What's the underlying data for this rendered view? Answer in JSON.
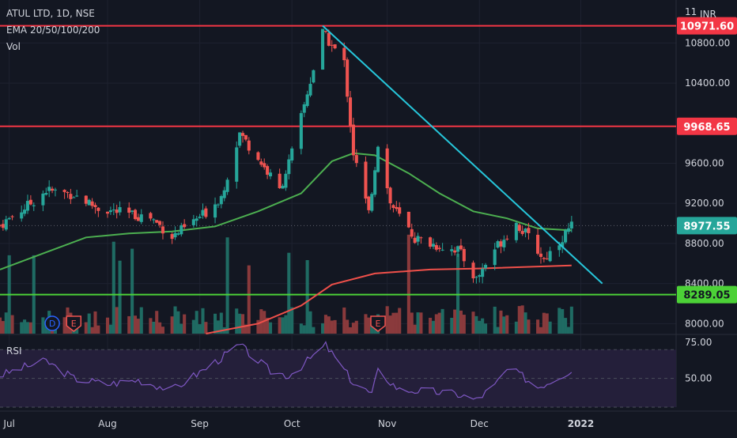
{
  "header": {
    "symbol_line": "ATUL LTD, 1D, NSE",
    "ema_line": "EMA 20/50/100/200",
    "vol_line": "Vol",
    "currency": "INR",
    "top_tick_partial": "11",
    "rsi_label": "RSI"
  },
  "colors": {
    "background": "#131722",
    "up": "#26a69a",
    "down": "#ef5350",
    "up_volume": "#1f6b63",
    "down_volume": "#8a3a3c",
    "ema_green": "#4caf50",
    "ema_red": "#f0504a",
    "trendline": "#26c6da",
    "resistance_line": "#f23645",
    "support_line": "#4cd137",
    "rsi_line": "#7e57c2",
    "rsi_band": "#241f3a"
  },
  "chart_data": [
    {
      "type": "candlestick",
      "title": "ATUL LTD, 1D, NSE",
      "ylim": [
        7900,
        11150
      ],
      "y_ticks": [
        "10800.00",
        "10400.00",
        "9600.00",
        "9200.00",
        "8800.00",
        "8400.00",
        "8000.00"
      ],
      "x_ticks": [
        "Jul",
        "Aug",
        "Sep",
        "Oct",
        "Nov",
        "Dec",
        "2022"
      ],
      "x_tick_dates": [
        "2021-07-01",
        "2021-08-02",
        "2021-09-01",
        "2021-10-01",
        "2021-11-01",
        "2021-12-01",
        "2022-01-03"
      ],
      "x_range": [
        "2021-06-28",
        "2022-01-25"
      ],
      "price_labels": [
        {
          "label": "10971.60",
          "value": 10971.6,
          "kind": "resistance"
        },
        {
          "label": "9968.65",
          "value": 9968.65,
          "kind": "resistance"
        },
        {
          "label": "8977.55",
          "value": 8977.55,
          "kind": "last_price"
        },
        {
          "label": "8289.05",
          "value": 8289.05,
          "kind": "support"
        }
      ],
      "horizontal_levels": [
        10971.6,
        9968.65,
        8289.05
      ],
      "trendline": {
        "from": {
          "date": "2021-10-11",
          "value": 10971.6
        },
        "to": {
          "date": "2022-01-10",
          "value": 8400
        }
      },
      "price_series": [
        {
          "date": "2021-06-28",
          "value": 8980
        },
        {
          "date": "2021-07-08",
          "value": 9200
        },
        {
          "date": "2021-07-13",
          "value": 9330
        },
        {
          "date": "2021-07-22",
          "value": 9290
        },
        {
          "date": "2021-07-30",
          "value": 9150
        },
        {
          "date": "2021-08-09",
          "value": 9090
        },
        {
          "date": "2021-08-16",
          "value": 9060
        },
        {
          "date": "2021-08-23",
          "value": 8870
        },
        {
          "date": "2021-08-27",
          "value": 8950
        },
        {
          "date": "2021-09-03",
          "value": 9110
        },
        {
          "date": "2021-09-08",
          "value": 9270
        },
        {
          "date": "2021-09-14",
          "value": 9900
        },
        {
          "date": "2021-09-20",
          "value": 9650
        },
        {
          "date": "2021-09-27",
          "value": 9330
        },
        {
          "date": "2021-10-01",
          "value": 9700
        },
        {
          "date": "2021-10-06",
          "value": 10300
        },
        {
          "date": "2021-10-11",
          "value": 10900
        },
        {
          "date": "2021-10-18",
          "value": 10600
        },
        {
          "date": "2021-10-21",
          "value": 9700
        },
        {
          "date": "2021-10-26",
          "value": 9100
        },
        {
          "date": "2021-10-29",
          "value": 9800
        },
        {
          "date": "2021-11-02",
          "value": 9200
        },
        {
          "date": "2021-11-10",
          "value": 8850
        },
        {
          "date": "2021-11-17",
          "value": 8780
        },
        {
          "date": "2021-11-24",
          "value": 8740
        },
        {
          "date": "2021-11-30",
          "value": 8440
        },
        {
          "date": "2021-12-06",
          "value": 8750
        },
        {
          "date": "2021-12-13",
          "value": 9000
        },
        {
          "date": "2021-12-17",
          "value": 8860
        },
        {
          "date": "2021-12-22",
          "value": 8640
        },
        {
          "date": "2021-12-28",
          "value": 8860
        },
        {
          "date": "2021-12-31",
          "value": 8977.55
        }
      ],
      "ema_series": [
        {
          "name": "EMA",
          "color_key": "ema_green",
          "points": [
            {
              "date": "2021-06-28",
              "value": 8540
            },
            {
              "date": "2021-07-12",
              "value": 8700
            },
            {
              "date": "2021-07-26",
              "value": 8860
            },
            {
              "date": "2021-08-09",
              "value": 8900
            },
            {
              "date": "2021-08-23",
              "value": 8920
            },
            {
              "date": "2021-09-06",
              "value": 8970
            },
            {
              "date": "2021-09-20",
              "value": 9120
            },
            {
              "date": "2021-10-04",
              "value": 9300
            },
            {
              "date": "2021-10-14",
              "value": 9620
            },
            {
              "date": "2021-10-21",
              "value": 9700
            },
            {
              "date": "2021-10-28",
              "value": 9680
            },
            {
              "date": "2021-11-08",
              "value": 9500
            },
            {
              "date": "2021-11-18",
              "value": 9300
            },
            {
              "date": "2021-11-29",
              "value": 9120
            },
            {
              "date": "2021-12-10",
              "value": 9050
            },
            {
              "date": "2021-12-20",
              "value": 8950
            },
            {
              "date": "2021-12-31",
              "value": 8930
            }
          ]
        },
        {
          "name": "EMA",
          "color_key": "ema_red",
          "points": [
            {
              "date": "2021-09-03",
              "value": 7900
            },
            {
              "date": "2021-09-20",
              "value": 8000
            },
            {
              "date": "2021-10-04",
              "value": 8180
            },
            {
              "date": "2021-10-14",
              "value": 8390
            },
            {
              "date": "2021-10-28",
              "value": 8500
            },
            {
              "date": "2021-11-15",
              "value": 8540
            },
            {
              "date": "2021-12-01",
              "value": 8550
            },
            {
              "date": "2021-12-31",
              "value": 8580
            }
          ]
        }
      ],
      "event_markers": [
        {
          "date": "2021-07-15",
          "label": "D",
          "kind": "dividend"
        },
        {
          "date": "2021-07-22",
          "label": "E",
          "kind": "earnings"
        },
        {
          "date": "2021-10-29",
          "label": "E",
          "kind": "earnings"
        }
      ],
      "grid": true,
      "legend": "top-left"
    },
    {
      "type": "line",
      "title": "RSI",
      "ylim": [
        30,
        80
      ],
      "y_ticks": [
        "75.00",
        "50.00"
      ],
      "band": [
        30,
        70
      ],
      "series": [
        {
          "name": "RSI",
          "points": [
            {
              "date": "2021-06-28",
              "value": 52
            },
            {
              "date": "2021-07-06",
              "value": 58
            },
            {
              "date": "2021-07-13",
              "value": 62
            },
            {
              "date": "2021-07-22",
              "value": 50
            },
            {
              "date": "2021-08-02",
              "value": 46
            },
            {
              "date": "2021-08-12",
              "value": 49
            },
            {
              "date": "2021-08-23",
              "value": 42
            },
            {
              "date": "2021-09-03",
              "value": 57
            },
            {
              "date": "2021-09-14",
              "value": 73
            },
            {
              "date": "2021-09-24",
              "value": 55
            },
            {
              "date": "2021-09-30",
              "value": 52
            },
            {
              "date": "2021-10-06",
              "value": 62
            },
            {
              "date": "2021-10-12",
              "value": 73
            },
            {
              "date": "2021-10-21",
              "value": 47
            },
            {
              "date": "2021-10-27",
              "value": 39
            },
            {
              "date": "2021-10-29",
              "value": 55
            },
            {
              "date": "2021-11-05",
              "value": 42
            },
            {
              "date": "2021-11-15",
              "value": 41
            },
            {
              "date": "2021-11-24",
              "value": 39
            },
            {
              "date": "2021-11-30",
              "value": 35
            },
            {
              "date": "2021-12-06",
              "value": 45
            },
            {
              "date": "2021-12-10",
              "value": 56
            },
            {
              "date": "2021-12-14",
              "value": 53
            },
            {
              "date": "2021-12-20",
              "value": 44
            },
            {
              "date": "2021-12-24",
              "value": 48
            },
            {
              "date": "2021-12-31",
              "value": 56
            }
          ]
        }
      ]
    }
  ]
}
